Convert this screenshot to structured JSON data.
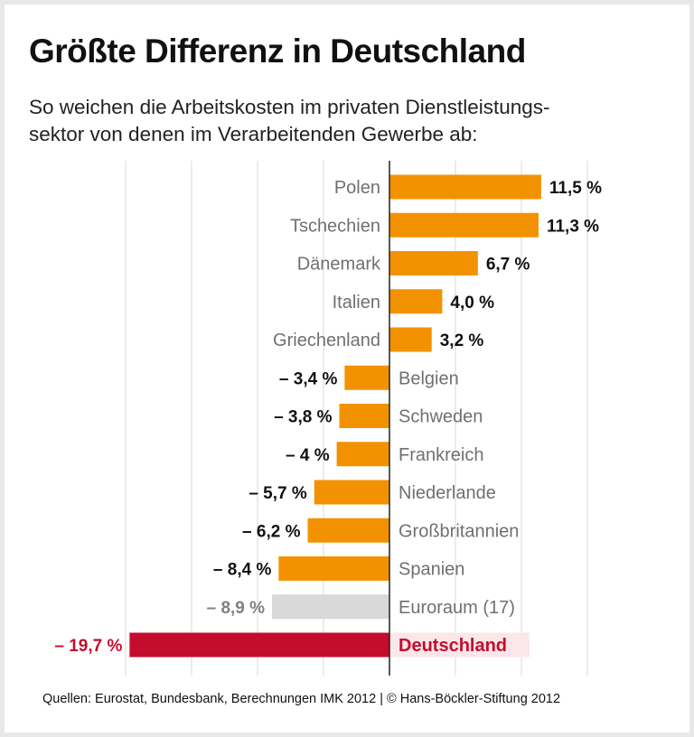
{
  "title": "Größte Differenz in Deutschland",
  "subtitle_line1": "So weichen die Arbeitskosten im privaten Dienstleistungs-",
  "subtitle_line2": "sektor von denen im Verarbeitenden Gewerbe ab:",
  "source": "Quellen: Eurostat, Bundesbank, Berechnungen IMK 2012 | © Hans-Böckler-Stiftung 2012",
  "chart_data": {
    "type": "bar",
    "orientation": "horizontal",
    "unit": "%",
    "xlim": [
      -20,
      15
    ],
    "grid": true,
    "categories": [
      "Polen",
      "Tschechien",
      "Dänemark",
      "Italien",
      "Griechenland",
      "Belgien",
      "Schweden",
      "Frankreich",
      "Niederlande",
      "Großbritannien",
      "Spanien",
      "Euroraum (17)",
      "Deutschland"
    ],
    "values": [
      11.5,
      11.3,
      6.7,
      4.0,
      3.2,
      -3.4,
      -3.8,
      -4,
      -5.7,
      -6.2,
      -8.4,
      -8.9,
      -19.7
    ],
    "labels": [
      "11,5 %",
      "11,3 %",
      "6,7 %",
      "4,0 %",
      "3,2 %",
      "– 3,4 %",
      "– 3,8 %",
      "– 4 %",
      "– 5,7 %",
      "– 6,2 %",
      "– 8,4 %",
      "– 8,9 %",
      "– 19,7 %"
    ],
    "colors": {
      "default": "#f39200",
      "Euroraum (17)": "#d9d9d9",
      "Deutschland": "#c40c2e",
      "highlight_bg": "#fbe7ea"
    }
  }
}
